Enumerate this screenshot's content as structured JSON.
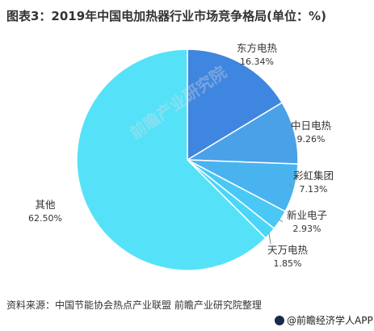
{
  "chart_data": {
    "type": "pie",
    "title": "图表3：2019年中国电加热器行业市场竞争格局(单位：%)",
    "slices": [
      {
        "label": "东方电热",
        "value": 16.34,
        "display": "16.34%",
        "color": "#3f86e0"
      },
      {
        "label": "中日电热",
        "value": 9.26,
        "display": "9.26%",
        "color": "#4aa1e8"
      },
      {
        "label": "彩虹集团",
        "value": 7.13,
        "display": "7.13%",
        "color": "#49b3f0"
      },
      {
        "label": "新业电子",
        "value": 2.93,
        "display": "2.93%",
        "color": "#4ac8f5"
      },
      {
        "label": "天万电热",
        "value": 1.85,
        "display": "1.85%",
        "color": "#4ad6f8"
      },
      {
        "label": "其他",
        "value": 62.5,
        "display": "62.50%",
        "color": "#55e2f9"
      }
    ]
  },
  "watermark": "前瞻产业研究院",
  "source": "资料来源：中国节能协会热点产业联盟 前瞻产业研究院整理",
  "credit": "@前瞻经济学人APP"
}
